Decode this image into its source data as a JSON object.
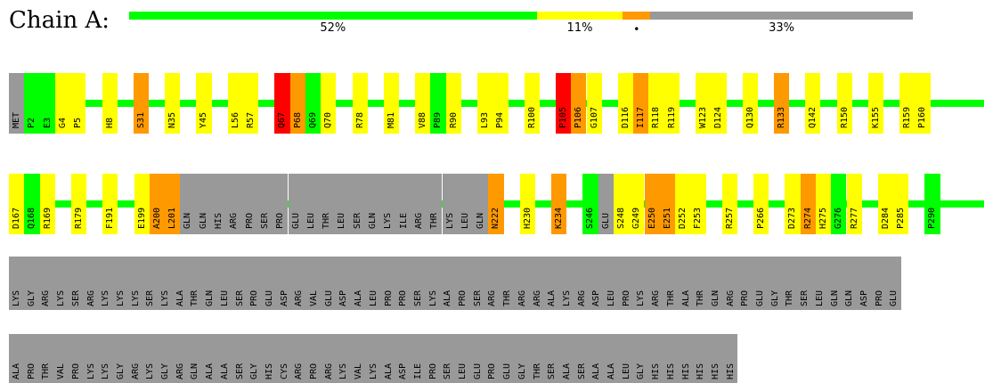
{
  "chain_label": "Chain A:",
  "colors": {
    "green": "#00ff00",
    "yellow": "#ffff00",
    "orange": "#ff9900",
    "red": "#ff0000",
    "grey": "#999999"
  },
  "summary_bar": {
    "segments": [
      {
        "color": "green",
        "fraction": 0.52,
        "label": "52%"
      },
      {
        "color": "yellow",
        "fraction": 0.11,
        "label": "11%"
      },
      {
        "color": "orange",
        "fraction": 0.035,
        "label": "•"
      },
      {
        "color": "grey",
        "fraction": 0.335,
        "label": "33%"
      }
    ]
  },
  "rows": [
    {
      "type": "sparse",
      "residues": [
        {
          "t": "MET",
          "c": "grey",
          "w": 1
        },
        {
          "t": "P2",
          "c": "green",
          "w": 1
        },
        {
          "t": "E3",
          "c": "green",
          "w": 1
        },
        {
          "t": "G4",
          "c": "yellow",
          "w": 1
        },
        {
          "t": "P5",
          "c": "yellow",
          "w": 1
        },
        {
          "g": 1
        },
        {
          "t": "H8",
          "c": "yellow",
          "w": 1
        },
        {
          "g": 1
        },
        {
          "t": "S31",
          "c": "orange",
          "w": 1
        },
        {
          "g": 1
        },
        {
          "t": "N35",
          "c": "yellow",
          "w": 1
        },
        {
          "g": 1
        },
        {
          "t": "Y45",
          "c": "yellow",
          "w": 1
        },
        {
          "g": 1
        },
        {
          "t": "L56",
          "c": "yellow",
          "w": 1
        },
        {
          "t": "R57",
          "c": "yellow",
          "w": 1
        },
        {
          "g": 1
        },
        {
          "t": "Q67",
          "c": "red",
          "w": 1
        },
        {
          "t": "P68",
          "c": "orange",
          "w": 1
        },
        {
          "t": "Q69",
          "c": "green",
          "w": 1
        },
        {
          "t": "Q70",
          "c": "yellow",
          "w": 1
        },
        {
          "g": 1
        },
        {
          "t": "R78",
          "c": "yellow",
          "w": 1
        },
        {
          "g": 1
        },
        {
          "t": "M81",
          "c": "yellow",
          "w": 1
        },
        {
          "g": 1
        },
        {
          "t": "V88",
          "c": "yellow",
          "w": 1
        },
        {
          "t": "P89",
          "c": "green",
          "w": 1
        },
        {
          "t": "R90",
          "c": "yellow",
          "w": 1
        },
        {
          "g": 1
        },
        {
          "t": "L93",
          "c": "yellow",
          "w": 1
        },
        {
          "t": "P94",
          "c": "yellow",
          "w": 1
        },
        {
          "g": 1
        },
        {
          "t": "R100",
          "c": "yellow",
          "w": 1
        },
        {
          "g": 1
        },
        {
          "t": "P105",
          "c": "red",
          "w": 1
        },
        {
          "t": "P106",
          "c": "orange",
          "w": 1
        },
        {
          "t": "G107",
          "c": "yellow",
          "w": 1
        },
        {
          "g": 1
        },
        {
          "t": "D116",
          "c": "yellow",
          "w": 1
        },
        {
          "t": "I117",
          "c": "orange",
          "w": 1
        },
        {
          "t": "R118",
          "c": "yellow",
          "w": 1
        },
        {
          "t": "R119",
          "c": "yellow",
          "w": 1
        },
        {
          "g": 1
        },
        {
          "t": "W123",
          "c": "yellow",
          "w": 1
        },
        {
          "t": "D124",
          "c": "yellow",
          "w": 1
        },
        {
          "g": 1
        },
        {
          "t": "Q130",
          "c": "yellow",
          "w": 1
        },
        {
          "g": 1
        },
        {
          "t": "R133",
          "c": "orange",
          "w": 1
        },
        {
          "g": 1
        },
        {
          "t": "Q142",
          "c": "yellow",
          "w": 1
        },
        {
          "g": 1
        },
        {
          "t": "R150",
          "c": "yellow",
          "w": 1
        },
        {
          "g": 1
        },
        {
          "t": "K155",
          "c": "yellow",
          "w": 1
        },
        {
          "g": 1
        },
        {
          "t": "R159",
          "c": "yellow",
          "w": 1
        },
        {
          "t": "P160",
          "c": "yellow",
          "w": 1
        }
      ]
    },
    {
      "type": "sparse",
      "residues": [
        {
          "t": "D167",
          "c": "yellow",
          "w": 1
        },
        {
          "t": "Q168",
          "c": "green",
          "w": 1
        },
        {
          "t": "R169",
          "c": "yellow",
          "w": 1
        },
        {
          "g": 1
        },
        {
          "t": "R179",
          "c": "yellow",
          "w": 1
        },
        {
          "g": 1
        },
        {
          "t": "F191",
          "c": "yellow",
          "w": 1
        },
        {
          "g": 1
        },
        {
          "t": "E199",
          "c": "yellow",
          "w": 1
        },
        {
          "t": "A200",
          "c": "orange",
          "w": 1
        },
        {
          "t": "L201",
          "c": "orange",
          "w": 1
        },
        {
          "t": "GLN",
          "c": "grey",
          "w": 1
        },
        {
          "t": "GLN",
          "c": "grey",
          "w": 1
        },
        {
          "t": "HIS",
          "c": "grey",
          "w": 1
        },
        {
          "t": "ARG",
          "c": "grey",
          "w": 1
        },
        {
          "t": "PRO",
          "c": "grey",
          "w": 1
        },
        {
          "t": "SER",
          "c": "grey",
          "w": 1
        },
        {
          "t": "PRO",
          "c": "grey",
          "w": 1
        },
        {
          "t": "GLU",
          "c": "grey",
          "w": 1
        },
        {
          "t": "LEU",
          "c": "grey",
          "w": 1
        },
        {
          "t": "THR",
          "c": "grey",
          "w": 1
        },
        {
          "t": "LEU",
          "c": "grey",
          "w": 1
        },
        {
          "t": "SER",
          "c": "grey",
          "w": 1
        },
        {
          "t": "GLN",
          "c": "grey",
          "w": 1
        },
        {
          "t": "LYS",
          "c": "grey",
          "w": 1
        },
        {
          "t": "ILE",
          "c": "grey",
          "w": 1
        },
        {
          "t": "ARG",
          "c": "grey",
          "w": 1
        },
        {
          "t": "THR",
          "c": "grey",
          "w": 1
        },
        {
          "t": "LYS",
          "c": "grey",
          "w": 1
        },
        {
          "t": "LEU",
          "c": "grey",
          "w": 1
        },
        {
          "t": "GLN",
          "c": "grey",
          "w": 1
        },
        {
          "t": "N222",
          "c": "orange",
          "w": 1
        },
        {
          "g": 1
        },
        {
          "t": "H230",
          "c": "yellow",
          "w": 1
        },
        {
          "g": 1
        },
        {
          "t": "K234",
          "c": "orange",
          "w": 1
        },
        {
          "g": 1
        },
        {
          "t": "S246",
          "c": "green",
          "w": 1
        },
        {
          "t": "GLU",
          "c": "grey",
          "w": 1
        },
        {
          "t": "S248",
          "c": "yellow",
          "w": 1
        },
        {
          "t": "G249",
          "c": "yellow",
          "w": 1
        },
        {
          "t": "E250",
          "c": "orange",
          "w": 1
        },
        {
          "t": "E251",
          "c": "orange",
          "w": 1
        },
        {
          "t": "D252",
          "c": "yellow",
          "w": 1
        },
        {
          "t": "F253",
          "c": "yellow",
          "w": 1
        },
        {
          "g": 1
        },
        {
          "t": "R257",
          "c": "yellow",
          "w": 1
        },
        {
          "g": 1
        },
        {
          "t": "P266",
          "c": "yellow",
          "w": 1
        },
        {
          "g": 1
        },
        {
          "t": "D273",
          "c": "yellow",
          "w": 1
        },
        {
          "t": "R274",
          "c": "orange",
          "w": 1
        },
        {
          "t": "H275",
          "c": "yellow",
          "w": 1
        },
        {
          "t": "G276",
          "c": "green",
          "w": 1
        },
        {
          "t": "R277",
          "c": "yellow",
          "w": 1
        },
        {
          "g": 1
        },
        {
          "t": "D284",
          "c": "yellow",
          "w": 1
        },
        {
          "t": "P285",
          "c": "yellow",
          "w": 1
        },
        {
          "g": 1
        },
        {
          "t": "P290",
          "c": "green",
          "w": 1
        }
      ]
    },
    {
      "type": "dense",
      "residues": [
        "LYS",
        "GLY",
        "ARG",
        "LYS",
        "SER",
        "ARG",
        "LYS",
        "LYS",
        "LYS",
        "SER",
        "LYS",
        "ALA",
        "THR",
        "GLN",
        "LEU",
        "SER",
        "PRO",
        "GLU",
        "ASP",
        "ARG",
        "VAL",
        "GLU",
        "ASP",
        "ALA",
        "LEU",
        "PRO",
        "PRO",
        "SER",
        "LYS",
        "ALA",
        "PRO",
        "SER",
        "ARG",
        "THR",
        "ARG",
        "ARG",
        "ALA",
        "LYS",
        "ARG",
        "ASP",
        "LEU",
        "PRO",
        "LYS",
        "ARG",
        "THR",
        "ALA",
        "THR",
        "GLN",
        "ARG",
        "PRO",
        "GLU",
        "GLY",
        "THR",
        "SER",
        "LEU",
        "GLN",
        "GLN",
        "ASP",
        "PRO",
        "GLU"
      ]
    },
    {
      "type": "dense",
      "residues": [
        "ALA",
        "PRO",
        "THR",
        "VAL",
        "PRO",
        "LYS",
        "LYS",
        "GLY",
        "ARG",
        "LYS",
        "GLY",
        "ARG",
        "GLN",
        "ALA",
        "ALA",
        "SER",
        "GLY",
        "HIS",
        "CYS",
        "ARG",
        "PRO",
        "ARG",
        "LYS",
        "VAL",
        "LYS",
        "ALA",
        "ASP",
        "ILE",
        "PRO",
        "SER",
        "LEU",
        "GLU",
        "PRO",
        "GLU",
        "GLY",
        "THR",
        "SER",
        "ALA",
        "SER",
        "ALA",
        "ALA",
        "LEU",
        "GLY",
        "HIS",
        "HIS",
        "HIS",
        "HIS",
        "HIS",
        "HIS"
      ]
    }
  ]
}
